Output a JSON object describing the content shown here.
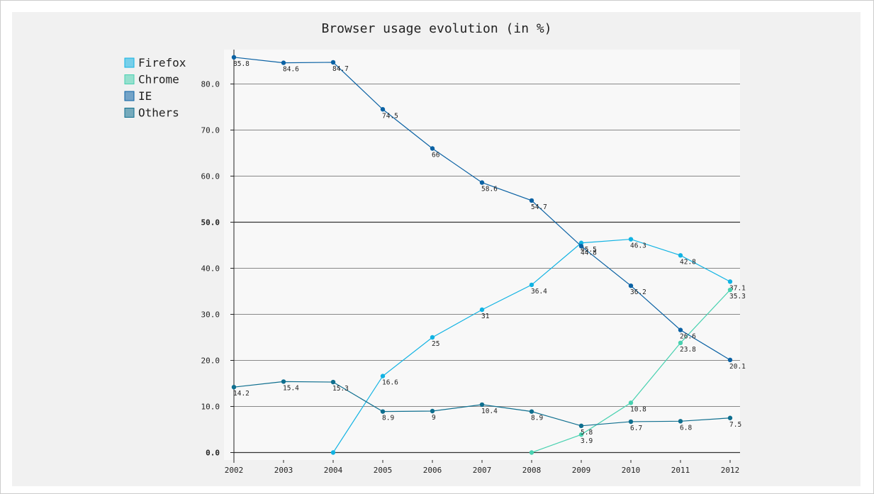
{
  "chart_data": {
    "type": "line",
    "title": "Browser usage evolution (in %)",
    "xlabel": "",
    "ylabel": "",
    "x": [
      "2002",
      "2003",
      "2004",
      "2005",
      "2006",
      "2007",
      "2008",
      "2009",
      "2010",
      "2011",
      "2012"
    ],
    "ylim": [
      0,
      85.8
    ],
    "yticks": [
      {
        "value": 0,
        "label": "0.0",
        "major": true
      },
      {
        "value": 10,
        "label": "10.0",
        "major": false
      },
      {
        "value": 20,
        "label": "20.0",
        "major": false
      },
      {
        "value": 30,
        "label": "30.0",
        "major": false
      },
      {
        "value": 40,
        "label": "40.0",
        "major": false
      },
      {
        "value": 50,
        "label": "50.0",
        "major": true
      },
      {
        "value": 60,
        "label": "60.0",
        "major": false
      },
      {
        "value": 70,
        "label": "70.0",
        "major": false
      },
      {
        "value": 80,
        "label": "80.0",
        "major": false
      }
    ],
    "grid": true,
    "legend_position": "top-left",
    "series": [
      {
        "name": "Firefox",
        "color": "#11b3e3",
        "values": [
          null,
          null,
          0,
          16.6,
          25,
          31,
          36.4,
          45.5,
          46.3,
          42.8,
          37.1
        ]
      },
      {
        "name": "Chrome",
        "color": "#48d1b0",
        "values": [
          null,
          null,
          null,
          null,
          null,
          null,
          0,
          3.9,
          10.8,
          23.8,
          35.3
        ]
      },
      {
        "name": "IE",
        "color": "#0b62a4",
        "values": [
          85.8,
          84.6,
          84.7,
          74.5,
          66,
          58.6,
          54.7,
          44.8,
          36.2,
          26.6,
          20.1
        ]
      },
      {
        "name": "Others",
        "color": "#0f6f8f",
        "values": [
          14.2,
          15.4,
          15.3,
          8.9,
          9,
          10.4,
          8.9,
          5.8,
          6.7,
          6.8,
          7.5
        ]
      }
    ],
    "value_labels": {
      "Firefox": [
        "",
        "",
        "",
        "16.6",
        "25",
        "31",
        "36.4",
        "45.5",
        "46.3",
        "42.8",
        "37.1"
      ],
      "Chrome": [
        "",
        "",
        "",
        "",
        "",
        "",
        "",
        "3.9",
        "10.8",
        "23.8",
        "35.3"
      ],
      "IE": [
        "85.8",
        "84.6",
        "84.7",
        "74.5",
        "66",
        "58.6",
        "54.7",
        "44.8",
        "36.2",
        "26.6",
        "20.1"
      ],
      "Others": [
        "14.2",
        "15.4",
        "15.3",
        "8.9",
        "9",
        "10.4",
        "8.9",
        "5.8",
        "6.7",
        "6.8",
        "7.5"
      ]
    },
    "colors": {
      "background": "#f1f1f1",
      "plot_background": "#f8f8f8",
      "gridline": "#888888",
      "major_gridline": "#333333",
      "axis": "#222222"
    }
  }
}
